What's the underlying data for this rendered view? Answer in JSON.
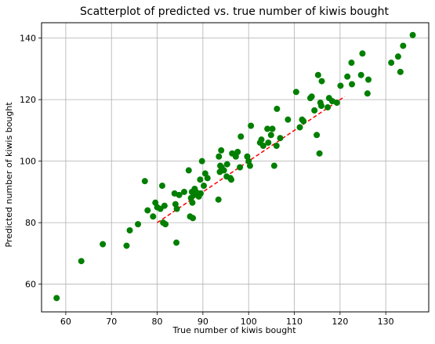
{
  "chart_data": {
    "type": "scatter",
    "title": "Scatterplot of predicted vs. true number of kiwis bought",
    "xlabel": "True number of kiwis bought",
    "ylabel": "Predicted number of kiwis bought",
    "xlim": [
      54.7,
      139.4
    ],
    "ylim": [
      51.0,
      145.0
    ],
    "xticks": [
      60,
      70,
      80,
      90,
      100,
      110,
      120,
      130
    ],
    "yticks": [
      60,
      80,
      100,
      120,
      140
    ],
    "grid": true,
    "colors": {
      "points": "#007f00",
      "reference_line": "#ff0000",
      "grid": "#b0b0b0"
    },
    "reference_line": {
      "x": [
        80,
        121
      ],
      "y": [
        80,
        121
      ],
      "style": "dashed"
    },
    "series": [
      {
        "x": [
          58.0,
          63.4,
          68.1,
          73.3,
          74.0,
          75.8,
          77.3,
          77.9,
          79.1,
          79.6,
          80.0,
          80.7,
          81.1,
          81.3,
          81.6,
          81.8,
          83.8,
          84.0,
          84.2,
          84.3,
          84.8,
          85.9,
          86.9,
          87.2,
          87.4,
          87.6,
          87.7,
          87.8,
          88.0,
          88.2,
          88.5,
          89.1,
          89.4,
          89.5,
          89.8,
          90.2,
          90.5,
          91.0,
          93.4,
          93.5,
          93.7,
          93.8,
          94.0,
          94.1,
          94.6,
          95.2,
          95.3,
          96.0,
          96.2,
          96.4,
          97.2,
          97.6,
          98.1,
          98.3,
          99.7,
          100.0,
          100.3,
          100.5,
          102.5,
          102.8,
          103.2,
          104.1,
          104.3,
          104.9,
          105.2,
          105.6,
          106.1,
          106.2,
          106.9,
          108.6,
          110.4,
          111.2,
          111.7,
          112.0,
          113.5,
          113.8,
          114.4,
          114.9,
          115.2,
          115.5,
          115.7,
          115.9,
          116.0,
          117.3,
          117.6,
          118.3,
          119.3,
          120.1,
          121.6,
          122.5,
          122.6,
          124.6,
          124.9,
          126.0,
          126.2,
          131.2,
          132.7,
          133.2,
          133.8,
          135.9
        ],
        "y": [
          55.5,
          67.5,
          73.0,
          72.5,
          77.5,
          79.5,
          93.5,
          84.0,
          82.0,
          86.5,
          85.0,
          84.5,
          92.0,
          80.0,
          85.5,
          79.5,
          89.5,
          86.0,
          73.5,
          84.5,
          89.0,
          90.0,
          97.0,
          82.0,
          88.0,
          90.0,
          86.5,
          81.5,
          89.0,
          91.0,
          90.0,
          88.5,
          94.0,
          89.5,
          100.0,
          92.0,
          96.0,
          94.5,
          87.5,
          101.5,
          96.5,
          98.5,
          103.5,
          98.0,
          97.0,
          95.0,
          99.0,
          94.5,
          94.0,
          102.5,
          101.5,
          103.0,
          98.0,
          108.0,
          101.5,
          100.0,
          98.5,
          111.5,
          106.0,
          107.0,
          105.0,
          110.5,
          106.0,
          108.5,
          110.5,
          98.5,
          105.0,
          117.0,
          107.5,
          113.5,
          122.5,
          111.0,
          113.5,
          113.0,
          120.5,
          121.0,
          116.5,
          108.5,
          128.0,
          102.5,
          119.0,
          118.0,
          126.0,
          117.5,
          120.5,
          119.5,
          119.0,
          124.5,
          127.5,
          132.0,
          125.0,
          128.0,
          135.0,
          122.0,
          126.5,
          132.0,
          134.0,
          129.0,
          137.5,
          141.0
        ]
      }
    ]
  }
}
